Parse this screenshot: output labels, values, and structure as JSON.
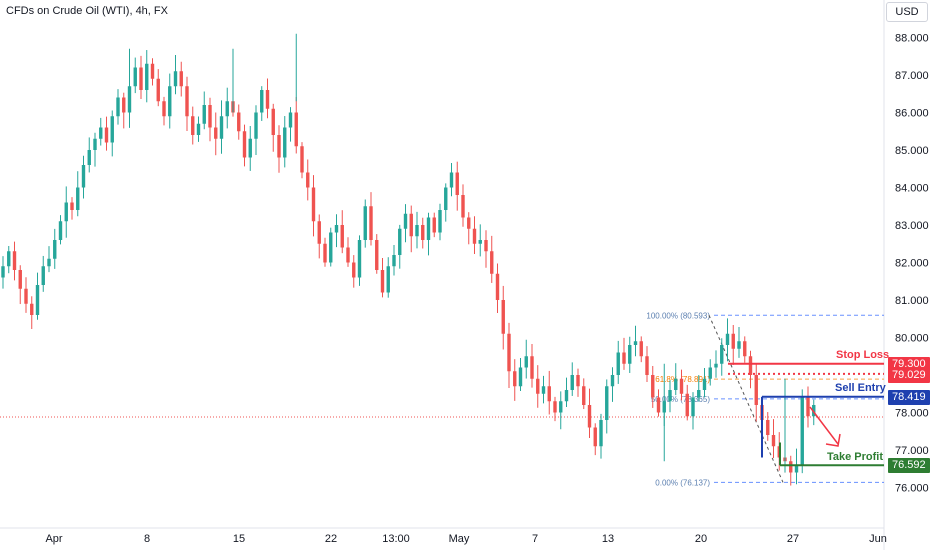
{
  "header": {
    "title": "CFDs on Crude Oil (WTI), 4h, FX",
    "currency": "USD"
  },
  "colors": {
    "up": "#26a69a",
    "down": "#ef5350",
    "stop": "#f23645",
    "entry": "#1e40af",
    "target": "#2e7d32",
    "fib": "#2962ff",
    "fib_mid": "#f57c00",
    "fib_text": "#5b7fb0"
  },
  "chart_data": {
    "type": "candlestick",
    "x_ticks": [
      "Apr",
      "8",
      "15",
      "22",
      "13:00",
      "May",
      "7",
      "13",
      "20",
      "27",
      "Jun"
    ],
    "y_ticks": [
      "76.000",
      "77.000",
      "78.000",
      "79.000",
      "80.000",
      "81.000",
      "82.000",
      "83.000",
      "84.000",
      "85.000",
      "86.000",
      "87.000",
      "88.000"
    ],
    "y_range": [
      75.4,
      88.7
    ],
    "current_price_line": 77.88,
    "closes": [
      81.9,
      82.3,
      81.8,
      81.3,
      80.9,
      80.6,
      81.4,
      81.9,
      82.1,
      82.6,
      83.1,
      83.6,
      83.4,
      84.0,
      84.6,
      85.0,
      85.3,
      85.6,
      85.2,
      85.9,
      86.4,
      86.0,
      86.7,
      87.2,
      86.6,
      87.3,
      86.9,
      86.3,
      85.9,
      86.7,
      87.1,
      86.7,
      85.9,
      85.4,
      85.7,
      86.2,
      85.6,
      85.3,
      85.9,
      86.3,
      86.0,
      85.5,
      84.8,
      85.3,
      86.0,
      86.6,
      86.1,
      85.4,
      84.8,
      85.6,
      86.0,
      85.1,
      84.4,
      84.0,
      83.1,
      82.5,
      82.0,
      82.8,
      83.0,
      82.4,
      82.0,
      81.6,
      82.6,
      83.5,
      82.6,
      81.8,
      81.2,
      81.9,
      82.2,
      82.9,
      83.3,
      82.7,
      83.0,
      82.6,
      83.2,
      82.8,
      83.4,
      84.0,
      84.4,
      83.8,
      83.2,
      82.9,
      82.5,
      82.6,
      82.3,
      81.7,
      81.0,
      80.1,
      79.1,
      78.7,
      79.2,
      79.5,
      78.9,
      78.5,
      78.7,
      78.3,
      78.0,
      78.3,
      78.6,
      79.0,
      78.7,
      78.2,
      77.6,
      77.1,
      77.8,
      78.7,
      79.0,
      79.6,
      79.3,
      79.8,
      79.9,
      79.5,
      79.0,
      78.4,
      78.0,
      78.3,
      78.6,
      78.9,
      78.5,
      77.9,
      78.4,
      78.6,
      78.9,
      79.2,
      79.3,
      79.8,
      80.1,
      79.7,
      79.9,
      79.5,
      79.0,
      78.2,
      77.8,
      77.4,
      77.1,
      76.8,
      76.7,
      76.4,
      76.6,
      78.4,
      77.9,
      78.2
    ],
    "annotations": [
      {
        "id": "stop_loss",
        "label": "Stop Loss",
        "price": 79.3,
        "price_label": "79.300",
        "style": "solid"
      },
      {
        "id": "stop_dotted",
        "price": 79.029,
        "price_label": "79.029",
        "style": "dotted"
      },
      {
        "id": "sell_entry",
        "label": "Sell Entry",
        "price": 78.419,
        "price_label": "78.419",
        "style": "solid"
      },
      {
        "id": "take_profit",
        "label": "Take Profit",
        "price": 76.592,
        "price_label": "76.592",
        "style": "solid"
      }
    ],
    "fibonacci": [
      {
        "label": "100.00% (80.593)",
        "price": 80.593
      },
      {
        "label": "61.8% (78.891)",
        "price": 78.891
      },
      {
        "label": "50.00% (78.365)",
        "price": 78.365
      },
      {
        "label": "0.00% (76.137)",
        "price": 76.137
      }
    ]
  }
}
